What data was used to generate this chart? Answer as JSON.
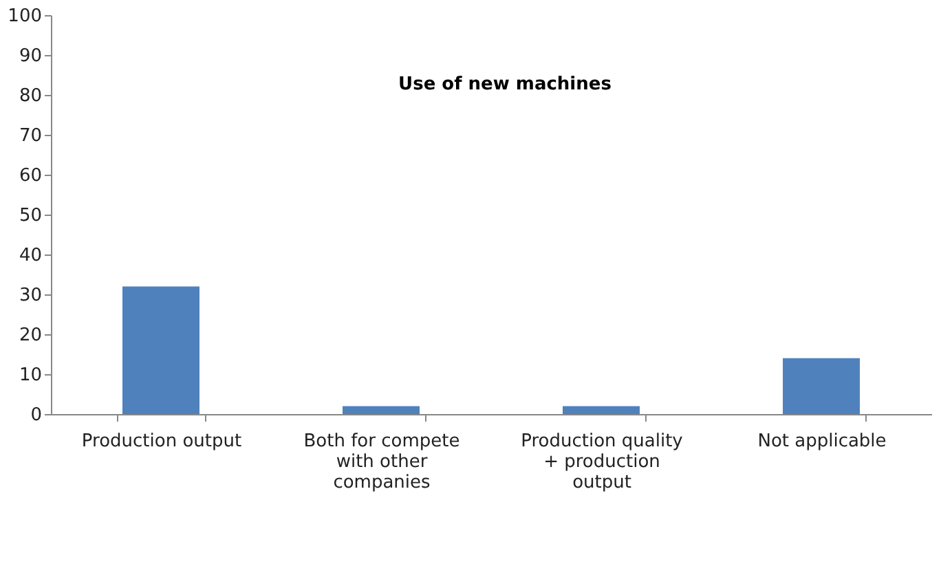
{
  "chart_data": {
    "type": "bar",
    "title": "Use of new  machines",
    "categories": [
      "Production output",
      "Both for compete with other companies",
      "Production quality + production output",
      "Not applicable"
    ],
    "values": [
      32,
      2,
      2,
      14
    ],
    "color": "#4f81bd",
    "ylim": [
      0,
      100
    ],
    "yticks": [
      0,
      10,
      20,
      30,
      40,
      50,
      60,
      70,
      80,
      90,
      100
    ],
    "grid": false
  }
}
